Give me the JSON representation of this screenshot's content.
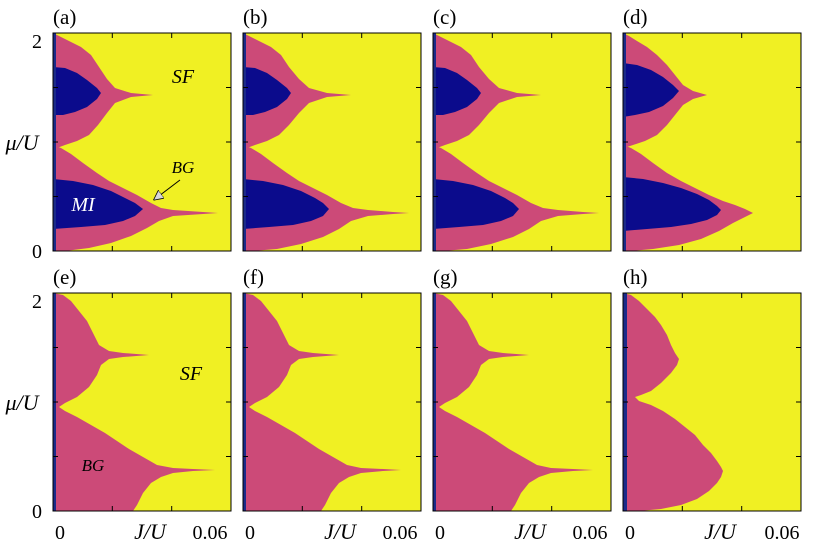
{
  "colors": {
    "sf": "#f0f023",
    "bg": "#cc4a78",
    "mi": "#0b0b8c",
    "axis": "#000000",
    "edge": "#1b2a8a"
  },
  "shared_axes": {
    "x_tick_labels": [
      "0",
      "0.06"
    ],
    "x_label": "J/U",
    "y_tick_labels": [
      "0",
      "2"
    ],
    "y_label": "μ/U"
  },
  "chart_data": [
    {
      "panel": "(a)",
      "type": "heatmap",
      "phases_shown": [
        "SF",
        "BG",
        "MI"
      ],
      "region_labels": [
        "SF",
        "MI",
        "BG"
      ],
      "xlim": [
        0,
        0.06
      ],
      "ylim": [
        0,
        2
      ],
      "mi_lobe_tips": [
        [
          0.016,
          1.5
        ],
        [
          0.032,
          0.5
        ]
      ],
      "bg_tips": [
        [
          0.03,
          1.5
        ],
        [
          0.06,
          0.38
        ]
      ],
      "bg_min_at_integer_mu": [
        0.004,
        0.003
      ]
    },
    {
      "panel": "(b)",
      "type": "heatmap",
      "phases_shown": [
        "SF",
        "BG",
        "MI"
      ],
      "xlim": [
        0,
        0.06
      ],
      "ylim": [
        0,
        2
      ],
      "mi_lobe_tips": [
        [
          0.016,
          1.5
        ],
        [
          0.031,
          0.5
        ]
      ],
      "bg_tips": [
        [
          0.032,
          1.5
        ],
        [
          0.059,
          0.38
        ]
      ]
    },
    {
      "panel": "(c)",
      "type": "heatmap",
      "phases_shown": [
        "SF",
        "BG",
        "MI"
      ],
      "xlim": [
        0,
        0.06
      ],
      "ylim": [
        0,
        2
      ],
      "mi_lobe_tips": [
        [
          0.016,
          1.5
        ],
        [
          0.031,
          0.5
        ]
      ],
      "bg_tips": [
        [
          0.032,
          1.5
        ],
        [
          0.059,
          0.38
        ]
      ]
    },
    {
      "panel": "(d)",
      "type": "heatmap",
      "phases_shown": [
        "SF",
        "BG",
        "MI"
      ],
      "xlim": [
        0,
        0.06
      ],
      "ylim": [
        0,
        2
      ],
      "mi_lobe_tips": [
        [
          0.018,
          1.5
        ],
        [
          0.033,
          0.5
        ]
      ],
      "bg_tips": [
        [
          0.027,
          1.5
        ],
        [
          0.041,
          0.38
        ]
      ]
    },
    {
      "panel": "(e)",
      "type": "heatmap",
      "phases_shown": [
        "SF",
        "BG"
      ],
      "region_labels": [
        "SF",
        "BG"
      ],
      "xlim": [
        0,
        0.06
      ],
      "ylim": [
        0,
        2
      ],
      "bg_tips": [
        [
          0.033,
          1.5
        ],
        [
          0.057,
          0.38
        ]
      ]
    },
    {
      "panel": "(f)",
      "type": "heatmap",
      "phases_shown": [
        "SF",
        "BG"
      ],
      "xlim": [
        0,
        0.06
      ],
      "ylim": [
        0,
        2
      ],
      "bg_tips": [
        [
          0.033,
          1.5
        ],
        [
          0.054,
          0.38
        ]
      ]
    },
    {
      "panel": "(g)",
      "type": "heatmap",
      "phases_shown": [
        "SF",
        "BG"
      ],
      "xlim": [
        0,
        0.06
      ],
      "ylim": [
        0,
        2
      ],
      "bg_tips": [
        [
          0.033,
          1.5
        ],
        [
          0.054,
          0.38
        ]
      ]
    },
    {
      "panel": "(h)",
      "type": "heatmap",
      "phases_shown": [
        "SF",
        "BG"
      ],
      "xlim": [
        0,
        0.06
      ],
      "ylim": [
        0,
        2
      ],
      "bg_tips": [
        [
          0.025,
          1.5
        ],
        [
          0.034,
          0.38
        ]
      ]
    }
  ]
}
